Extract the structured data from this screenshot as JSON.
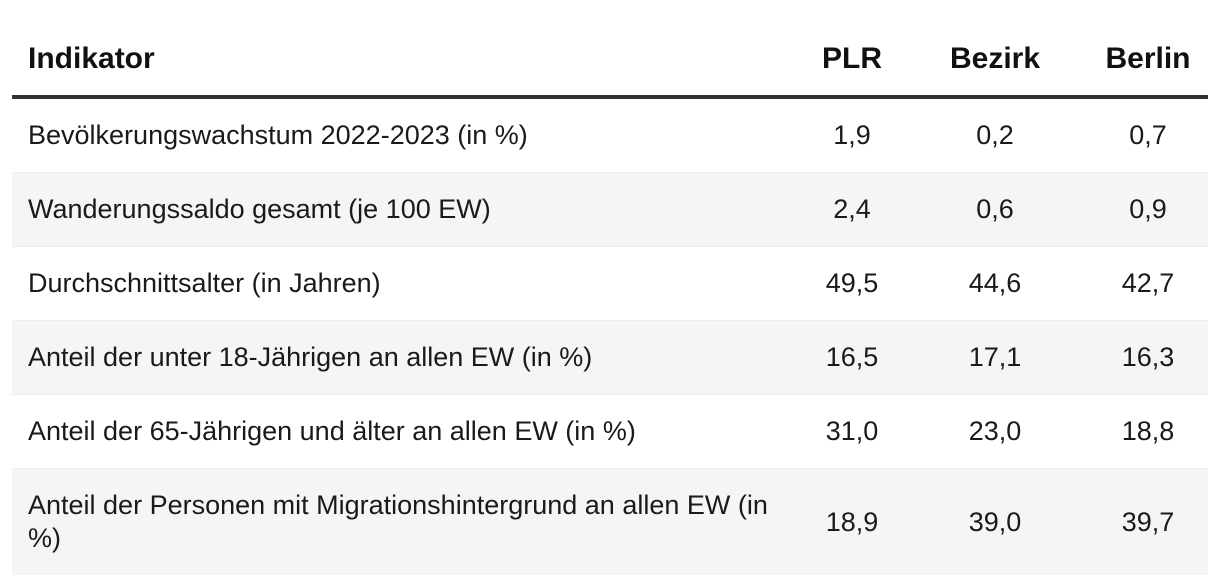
{
  "chart_data": {
    "type": "table",
    "title": "",
    "columns": [
      "Indikator",
      "PLR",
      "Bezirk",
      "Berlin"
    ],
    "rows": [
      {
        "label": "Bevölkerungswachstum 2022-2023 (in %)",
        "plr": "1,9",
        "bezirk": "0,2",
        "berlin": "0,7"
      },
      {
        "label": "Wanderungssaldo gesamt (je 100 EW)",
        "plr": "2,4",
        "bezirk": "0,6",
        "berlin": "0,9"
      },
      {
        "label": "Durchschnittsalter (in Jahren)",
        "plr": "49,5",
        "bezirk": "44,6",
        "berlin": "42,7"
      },
      {
        "label": "Anteil der unter 18-Jährigen an allen EW (in %)",
        "plr": "16,5",
        "bezirk": "17,1",
        "berlin": "16,3"
      },
      {
        "label": "Anteil der 65-Jährigen und älter an allen EW (in %)",
        "plr": "31,0",
        "bezirk": "23,0",
        "berlin": "18,8"
      },
      {
        "label": "Anteil der Personen mit Migrationshintergrund an allen EW (in %)",
        "plr": "18,9",
        "bezirk": "39,0",
        "berlin": "39,7"
      }
    ],
    "layout": {
      "zebra_striping": true,
      "numeric_alignment": "center",
      "header_rule": true
    }
  },
  "colors": {
    "background": "#ffffff",
    "stripe": "#f5f5f5",
    "header_rule": "#333333",
    "row_divider": "#ececec",
    "text": "#1a1a1a"
  }
}
